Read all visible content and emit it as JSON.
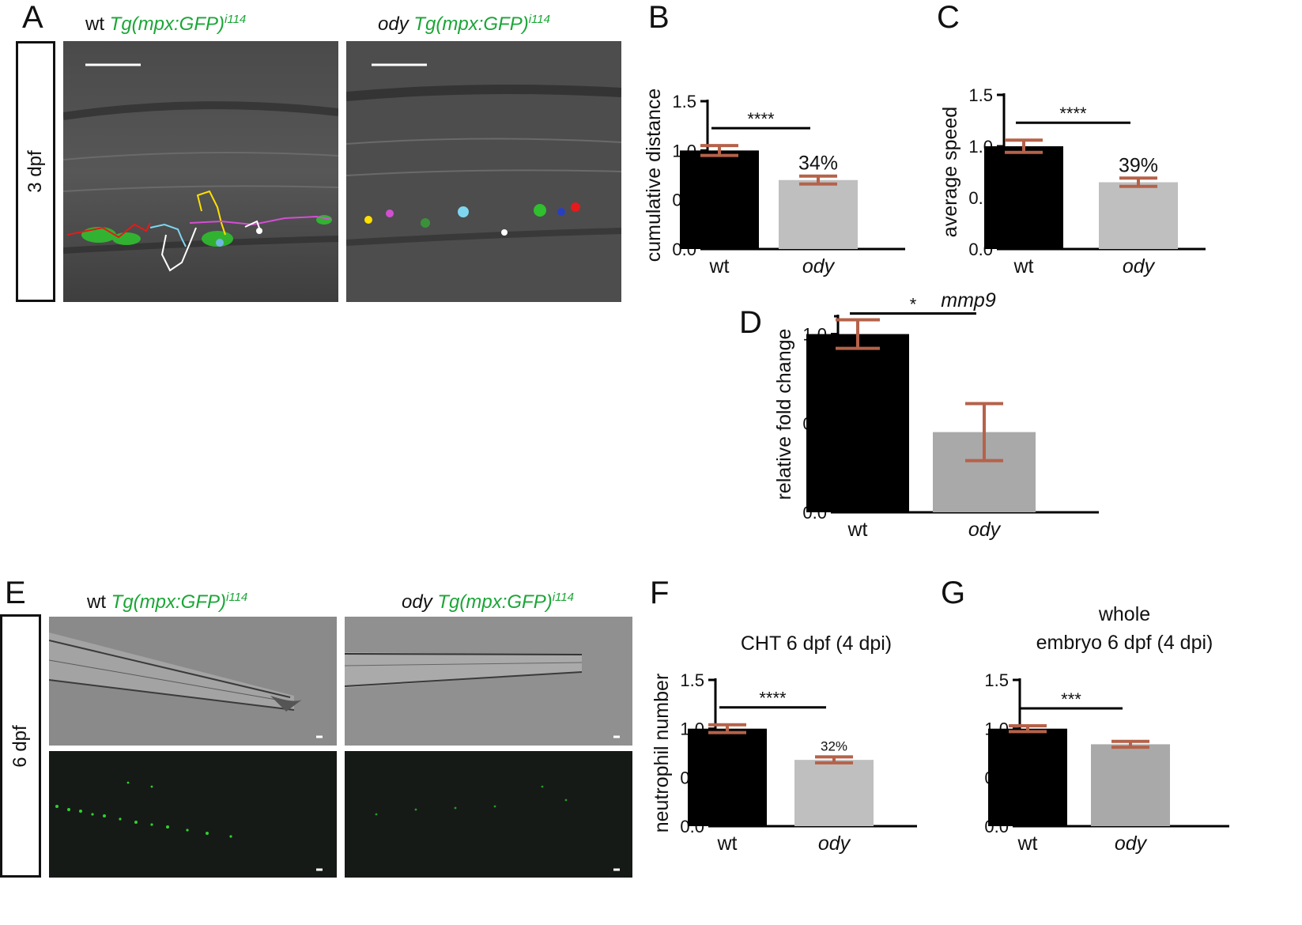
{
  "panels": {
    "A": {
      "letter": "A",
      "side_label": "3 dpf",
      "titles": {
        "wt": {
          "geno": "wt",
          "tg": "Tg(mpx:GFP)",
          "sup": "i114"
        },
        "ody": {
          "geno": "ody",
          "tg": "Tg(mpx:GFP)",
          "sup": "i114"
        }
      }
    },
    "E": {
      "letter": "E",
      "side_label": "6 dpf",
      "titles": {
        "wt": {
          "geno": "wt",
          "tg": "Tg(mpx:GFP)",
          "sup": "i114"
        },
        "ody": {
          "geno": "ody",
          "tg": "Tg(mpx:GFP)",
          "sup": "i114"
        }
      }
    }
  },
  "colors": {
    "wt_bar": "#000000",
    "ody_bar_light": "#bfbfbf",
    "ody_bar_dark": "#a9a9a9",
    "error_bar": "#b5624a",
    "gfp_green": "#1aa636"
  },
  "chart_data": [
    {
      "id": "B",
      "letter": "B",
      "type": "bar",
      "categories": [
        "wt",
        "ody"
      ],
      "values": [
        1.0,
        0.7
      ],
      "errors": [
        0.05,
        0.04
      ],
      "ylabel": "cumulative distance",
      "title": "",
      "ylim": [
        0,
        1.5
      ],
      "yticks": [
        "0.0",
        "0.5",
        "1.0",
        "1.5"
      ],
      "significance": "****",
      "annotation": "34%"
    },
    {
      "id": "C",
      "letter": "C",
      "type": "bar",
      "categories": [
        "wt",
        "ody"
      ],
      "values": [
        1.0,
        0.65
      ],
      "errors": [
        0.06,
        0.04
      ],
      "ylabel": "average speed",
      "title": "",
      "ylim": [
        0,
        1.5
      ],
      "yticks": [
        "0.0",
        "0.5",
        "1.0",
        "1.5"
      ],
      "significance": "****",
      "annotation": "39%"
    },
    {
      "id": "D",
      "letter": "D",
      "type": "bar",
      "categories": [
        "wt",
        "ody"
      ],
      "values": [
        1.0,
        0.45
      ],
      "errors": [
        0.08,
        0.16
      ],
      "ylabel": "relative fold change",
      "title": "mmp9",
      "ylim": [
        0,
        1.1
      ],
      "yticks": [
        "0.0",
        "0.5",
        "1.0"
      ],
      "significance": "*",
      "annotation": ""
    },
    {
      "id": "F",
      "letter": "F",
      "type": "bar",
      "categories": [
        "wt",
        "ody"
      ],
      "values": [
        1.0,
        0.68
      ],
      "errors": [
        0.04,
        0.03
      ],
      "ylabel": "neutrophil number",
      "title": "CHT 6 dpf (4 dpi)",
      "ylim": [
        0,
        1.5
      ],
      "yticks": [
        "0.0",
        "0.5",
        "1.0",
        "1.5"
      ],
      "significance": "****",
      "annotation": "32%"
    },
    {
      "id": "G",
      "letter": "G",
      "type": "bar",
      "categories": [
        "wt",
        "ody"
      ],
      "values": [
        1.0,
        0.84
      ],
      "errors": [
        0.03,
        0.03
      ],
      "ylabel": "",
      "title": "whole embryo 6 dpf (4 dpi)",
      "title_lines": [
        "whole",
        "embryo 6 dpf (4 dpi)"
      ],
      "ylim": [
        0,
        1.5
      ],
      "yticks": [
        "0.0",
        "0.5",
        "1.0",
        "1.5"
      ],
      "significance": "***",
      "annotation": ""
    }
  ]
}
